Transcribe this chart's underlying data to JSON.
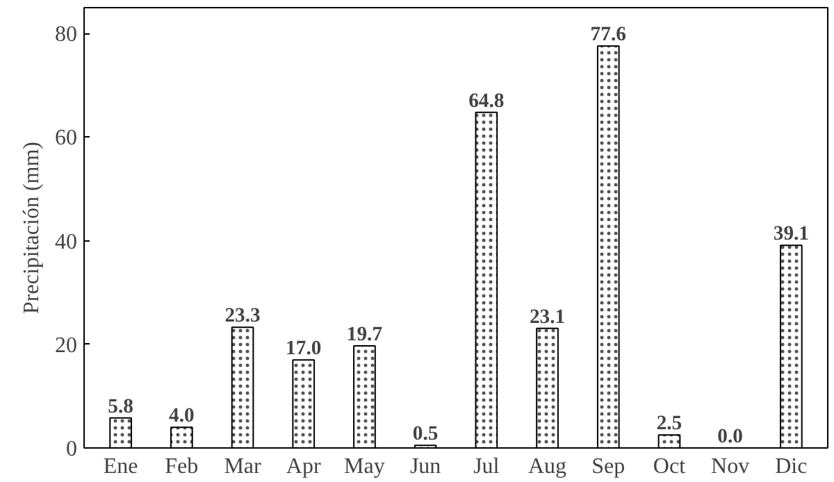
{
  "chart_data": {
    "type": "bar",
    "ylabel": "Precipitación (mm)",
    "categories": [
      "Ene",
      "Feb",
      "Mar",
      "Apr",
      "May",
      "Jun",
      "Jul",
      "Aug",
      "Sep",
      "Oct",
      "Nov",
      "Dic"
    ],
    "values": [
      5.8,
      4.0,
      23.3,
      17.0,
      19.7,
      0.5,
      64.8,
      23.1,
      77.6,
      2.5,
      0.0,
      39.1
    ],
    "value_labels": [
      "5.8",
      "4.0",
      "23.3",
      "17.0",
      "19.7",
      "0.5",
      "64.8",
      "23.1",
      "77.6",
      "2.5",
      "0.0",
      "39.1"
    ],
    "color": "#ffffff",
    "ylim": [
      0,
      85
    ],
    "yticks": [
      0,
      20,
      40,
      60,
      80
    ],
    "grid": false
  }
}
